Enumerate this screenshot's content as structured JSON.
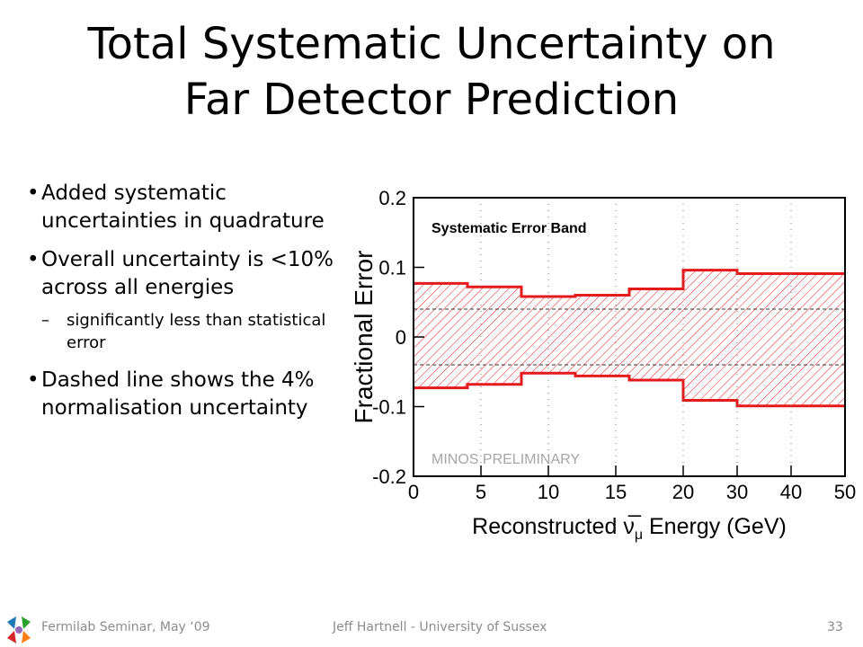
{
  "slide": {
    "title_line1": "Total Systematic Uncertainty on",
    "title_line2": "Far Detector Prediction",
    "bullets": [
      "Added systematic uncertainties in quadrature",
      "Overall uncertainty is <10% across all energies",
      "significantly less than statistical error",
      "Dashed line shows the 4% normalisation uncertainty"
    ]
  },
  "footer": {
    "left": "Fermilab Seminar, May ‘09",
    "center": "Jeff Hartnell - University of Sussex",
    "page": "33"
  },
  "chart_data": {
    "type": "area",
    "title": "",
    "legend": "Systematic Error Band",
    "annotation": "MINOS PRELIMINARY",
    "xlabel_pre": "Reconstructed",
    "xlabel_symbol": "ν̅",
    "xlabel_sub": "μ",
    "xlabel_post": "Energy (GeV)",
    "ylabel": "Fractional Error",
    "ylim": [
      -0.2,
      0.2
    ],
    "yticks": [
      "0.2",
      "0.1",
      "0",
      "-0.1",
      "-0.2"
    ],
    "xticks": [
      "0",
      "5",
      "10",
      "15",
      "20",
      "30",
      "40",
      "50"
    ],
    "x_scale_note": "linear 0-20 GeV, then compressed 20-50 GeV",
    "bins": [
      {
        "x0": 0,
        "x1": 4,
        "upper": 0.077,
        "lower": -0.073
      },
      {
        "x0": 4,
        "x1": 8,
        "upper": 0.072,
        "lower": -0.068
      },
      {
        "x0": 8,
        "x1": 12,
        "upper": 0.058,
        "lower": -0.052
      },
      {
        "x0": 12,
        "x1": 16,
        "upper": 0.06,
        "lower": -0.056
      },
      {
        "x0": 16,
        "x1": 20,
        "upper": 0.069,
        "lower": -0.062
      },
      {
        "x0": 20,
        "x1": 30,
        "upper": 0.096,
        "lower": -0.091
      },
      {
        "x0": 30,
        "x1": 50,
        "upper": 0.091,
        "lower": -0.099
      }
    ],
    "normalisation": 0.04,
    "band_color": "#e41a1c"
  }
}
